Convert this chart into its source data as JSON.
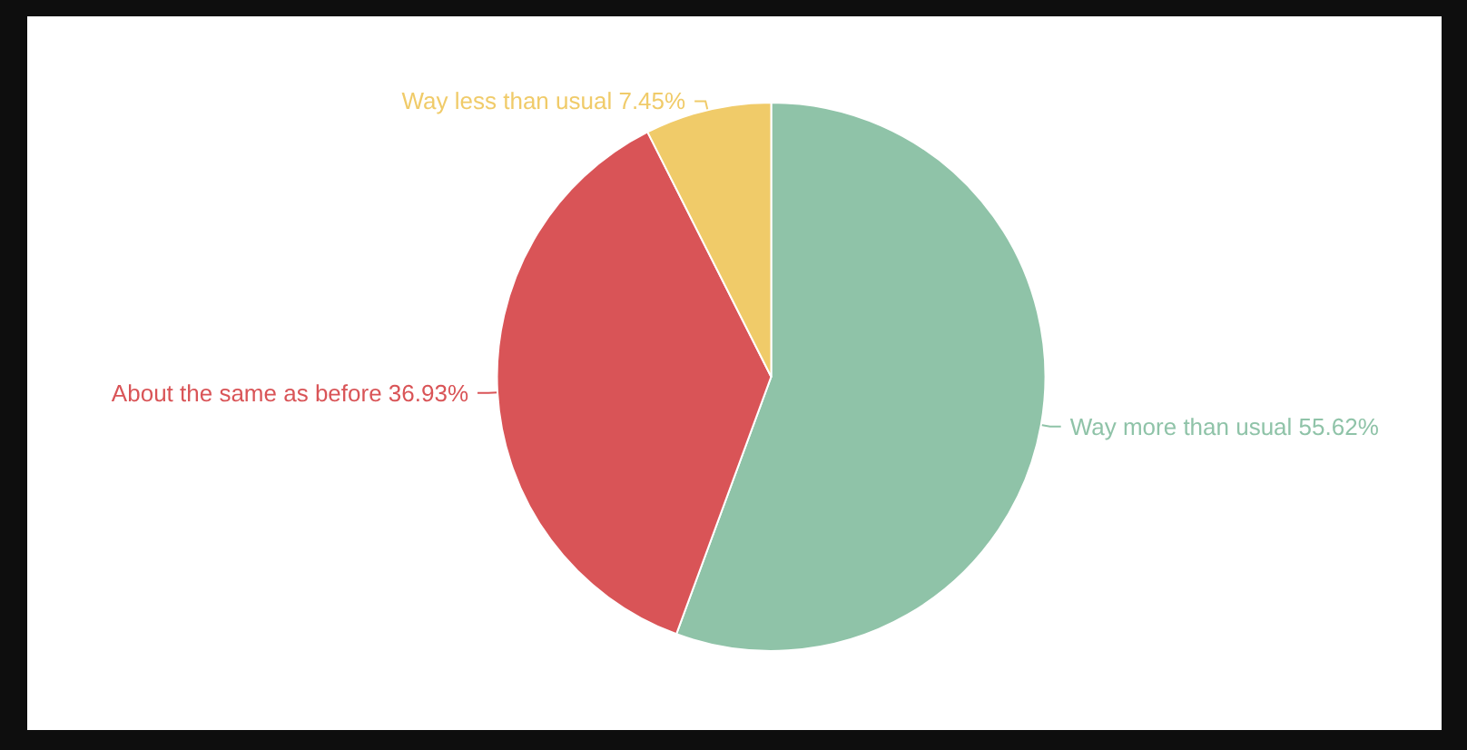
{
  "chart_data": {
    "type": "pie",
    "categories": [
      "Way more than usual",
      "About the same as before",
      "Way less than usual"
    ],
    "values": [
      55.62,
      36.93,
      7.45
    ],
    "value_labels": [
      "55.62%",
      "36.93%",
      "7.45%"
    ],
    "colors": [
      "#8fc3a8",
      "#d95457",
      "#f0cb69"
    ],
    "legend": false
  }
}
